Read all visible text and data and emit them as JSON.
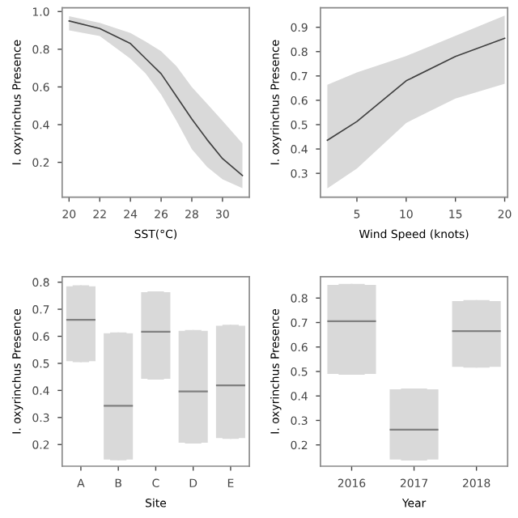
{
  "chart_data": [
    {
      "type": "line",
      "xlabel": "SST(°C)",
      "ylabel": "I. oxyrinchus Presence",
      "xlim": [
        19.55,
        31.75
      ],
      "ylim": [
        0.015,
        1.02
      ],
      "xticks": [
        20,
        22,
        24,
        26,
        28,
        30
      ],
      "yticks": [
        0.2,
        0.4,
        0.6,
        0.8,
        {
          "value": 1.0,
          "label": "1.0"
        }
      ],
      "grid": false,
      "legend": false,
      "series": [
        {
          "color": "#404040",
          "x": [
            20,
            22,
            24,
            25,
            26,
            27,
            28,
            29,
            30,
            31.3
          ],
          "values": [
            0.95,
            0.91,
            0.83,
            0.75,
            0.67,
            0.55,
            0.43,
            0.32,
            0.22,
            0.13
          ],
          "lower": [
            0.9,
            0.87,
            0.75,
            0.67,
            0.56,
            0.42,
            0.27,
            0.176,
            0.11,
            0.063
          ],
          "upper": [
            0.975,
            0.94,
            0.886,
            0.84,
            0.79,
            0.71,
            0.6,
            0.51,
            0.42,
            0.3
          ]
        }
      ]
    },
    {
      "type": "line",
      "xlabel": "Wind Speed (knots)",
      "ylabel": "I. oxyrinchus Presence",
      "xlim": [
        1.3,
        20.3
      ],
      "ylim": [
        0.202,
        0.98
      ],
      "xticks": [
        5,
        10,
        15,
        20
      ],
      "yticks": [
        0.3,
        0.4,
        0.5,
        0.6,
        0.7,
        0.8,
        0.9
      ],
      "grid": false,
      "legend": false,
      "series": [
        {
          "color": "#404040",
          "x": [
            2,
            5,
            10,
            15,
            20
          ],
          "values": [
            0.436,
            0.513,
            0.68,
            0.78,
            0.855
          ],
          "lower": [
            0.238,
            0.32,
            0.507,
            0.607,
            0.668
          ],
          "upper": [
            0.664,
            0.714,
            0.782,
            0.865,
            0.948
          ]
        }
      ]
    },
    {
      "type": "box",
      "xlabel": "Site",
      "ylabel": "I. oxyrinchus Presence",
      "categories": [
        "A",
        "B",
        "C",
        "D",
        "E"
      ],
      "ylim": [
        0.12,
        0.82
      ],
      "yticks": [
        0.2,
        0.3,
        0.4,
        0.5,
        0.6,
        0.7,
        0.8
      ],
      "grid": false,
      "legend": false,
      "series": [
        {
          "color": "#d9d9d9",
          "boxes": [
            {
              "low": 0.508,
              "q1": 0.508,
              "median": 0.661,
              "q3": 0.785,
              "high": 0.785
            },
            {
              "low": 0.145,
              "q1": 0.145,
              "median": 0.343,
              "q3": 0.611,
              "high": 0.611
            },
            {
              "low": 0.443,
              "q1": 0.443,
              "median": 0.617,
              "q3": 0.763,
              "high": 0.763
            },
            {
              "low": 0.207,
              "q1": 0.207,
              "median": 0.396,
              "q3": 0.62,
              "high": 0.62
            },
            {
              "low": 0.224,
              "q1": 0.224,
              "median": 0.419,
              "q3": 0.639,
              "high": 0.639
            }
          ]
        }
      ]
    },
    {
      "type": "box",
      "xlabel": "Year",
      "ylabel": "I. oxyrinchus Presence",
      "categories": [
        "2016",
        "2017",
        "2018"
      ],
      "ylim": [
        0.113,
        0.887
      ],
      "yticks": [
        0.2,
        0.3,
        0.4,
        0.5,
        0.6,
        0.7,
        0.8
      ],
      "grid": false,
      "legend": false,
      "series": [
        {
          "color": "#d9d9d9",
          "boxes": [
            {
              "low": 0.49,
              "q1": 0.49,
              "median": 0.705,
              "q3": 0.854,
              "high": 0.854
            },
            {
              "low": 0.14,
              "q1": 0.14,
              "median": 0.262,
              "q3": 0.427,
              "high": 0.427
            },
            {
              "low": 0.519,
              "q1": 0.519,
              "median": 0.665,
              "q3": 0.788,
              "high": 0.788
            }
          ]
        }
      ]
    }
  ]
}
